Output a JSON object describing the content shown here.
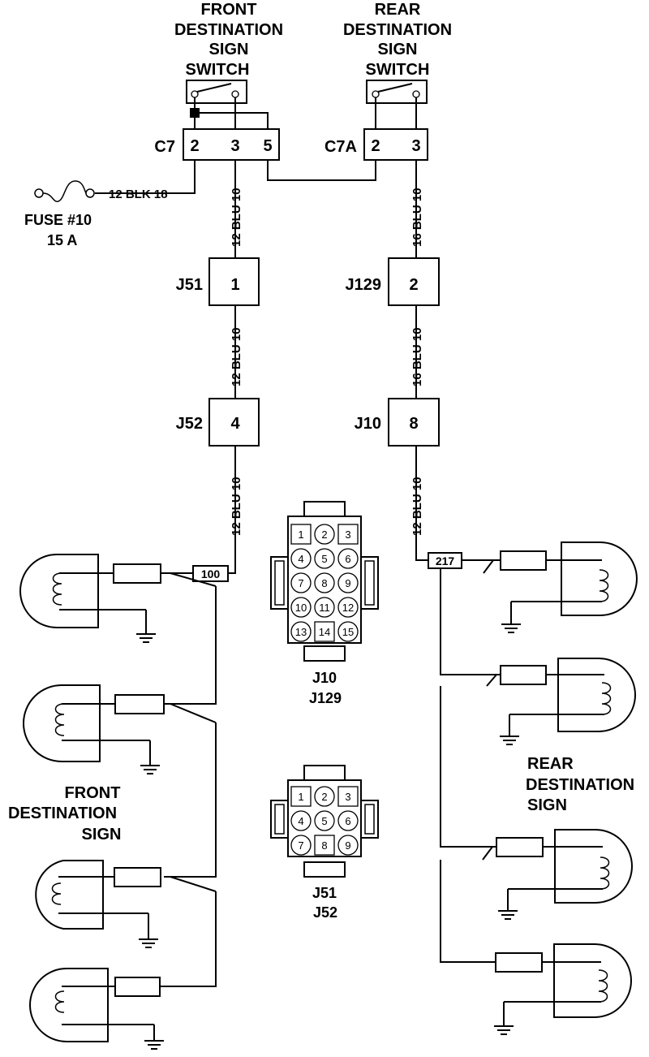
{
  "front_switch": {
    "title": [
      "FRONT",
      "DESTINATION",
      "SIGN",
      "SWITCH"
    ]
  },
  "rear_switch": {
    "title": [
      "REAR",
      "DESTINATION",
      "SIGN",
      "SWITCH"
    ]
  },
  "connector_c7": {
    "name": "C7",
    "pins": [
      "2",
      "3",
      "5"
    ]
  },
  "connector_c7a": {
    "name": "C7A",
    "pins": [
      "2",
      "3"
    ]
  },
  "fuse": {
    "lines": [
      "FUSE #10",
      "15 A"
    ],
    "wire_label": "12 BLK 18"
  },
  "wires": {
    "c7_to_j51": "12 BLU 10",
    "j51_to_j52": "12 BLU 10",
    "j52_to_splice": "12 BLU 10",
    "c7a_to_j129": "16 BLU 10",
    "j129_to_j10": "16 BLU 10",
    "j10_to_splice": "12 BLU 10"
  },
  "junctions": {
    "j51": {
      "name": "J51",
      "pin": "1"
    },
    "j129": {
      "name": "J129",
      "pin": "2"
    },
    "j52": {
      "name": "J52",
      "pin": "4"
    },
    "j10": {
      "name": "J10",
      "pin": "8"
    }
  },
  "splices": {
    "front": "100",
    "rear": "217"
  },
  "connector_15pin": {
    "pins": [
      "1",
      "2",
      "3",
      "4",
      "5",
      "6",
      "7",
      "8",
      "9",
      "10",
      "11",
      "12",
      "13",
      "14",
      "15"
    ],
    "labels": [
      "J10",
      "J129"
    ]
  },
  "connector_9pin": {
    "pins": [
      "1",
      "2",
      "3",
      "4",
      "5",
      "6",
      "7",
      "8",
      "9"
    ],
    "labels": [
      "J51",
      "J52"
    ]
  },
  "front_sign_label": [
    "FRONT",
    "DESTINATION",
    "SIGN"
  ],
  "rear_sign_label": [
    "REAR",
    "DESTINATION",
    "SIGN"
  ],
  "colors": {
    "line": "#000000",
    "background": "#ffffff"
  }
}
